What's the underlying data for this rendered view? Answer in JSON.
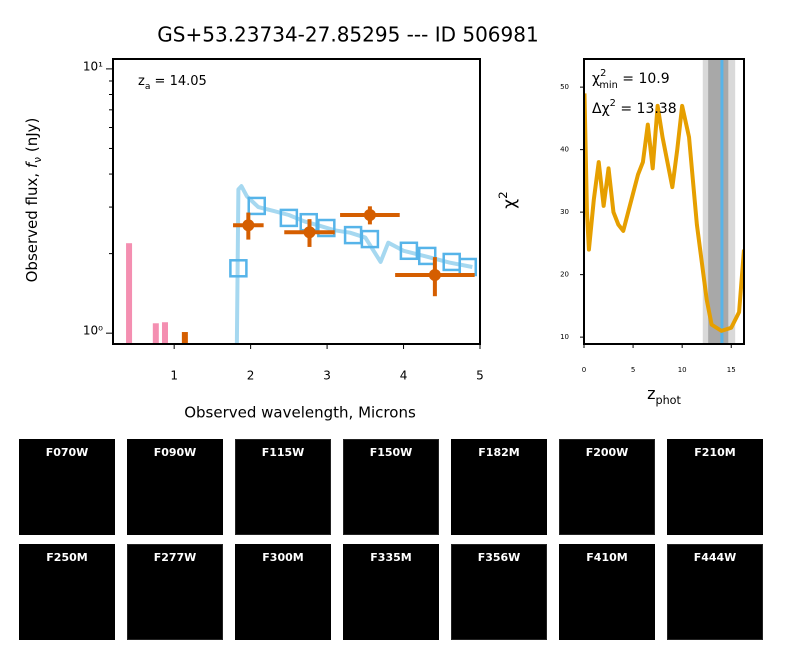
{
  "title": "GS+53.23734-27.85295 --- ID 506981",
  "chart_data": [
    {
      "type": "sed",
      "xlabel": "Observed wavelength, Microns",
      "ylabel": [
        "Observed flux, ",
        "f",
        "ν",
        " (nJy)"
      ],
      "annotation": [
        "z",
        "a",
        " = 14.05"
      ],
      "xlim": [
        0.2,
        5
      ],
      "xticks": [
        1,
        2,
        3,
        4,
        5
      ],
      "yscale": "log",
      "ylim": [
        0.91,
        10.9
      ],
      "yticks": [
        {
          "value": 1,
          "label": "10⁰"
        },
        {
          "value": 10,
          "label": "10¹"
        }
      ],
      "yminorticks": [
        2,
        3,
        4,
        5,
        6,
        7,
        8,
        9
      ],
      "model": {
        "color": "#a6d8f0",
        "x": [
          1.82,
          1.84,
          1.88,
          1.95,
          2.1,
          2.3,
          2.5,
          2.7,
          2.9,
          3.1,
          3.3,
          3.5,
          3.7,
          3.8,
          4.0,
          4.3,
          4.6,
          4.9
        ],
        "values": [
          0.91,
          3.5,
          3.6,
          3.3,
          3.0,
          2.9,
          2.8,
          2.65,
          2.55,
          2.45,
          2.4,
          2.3,
          1.86,
          2.2,
          2.05,
          1.95,
          1.85,
          1.78
        ]
      },
      "model_photometry": {
        "color": "#56b4e9",
        "x": [
          1.84,
          2.08,
          2.5,
          2.76,
          2.99,
          3.34,
          3.56,
          4.07,
          4.31,
          4.63,
          4.84
        ],
        "values": [
          1.76,
          3.03,
          2.73,
          2.63,
          2.5,
          2.35,
          2.27,
          2.05,
          1.96,
          1.86,
          1.78
        ]
      },
      "photometry": {
        "color": "#d55e00",
        "x": [
          1.97,
          2.77,
          3.56,
          4.41
        ],
        "xerr": [
          0.2,
          0.33,
          0.39,
          0.52
        ],
        "values": [
          2.56,
          2.41,
          2.8,
          1.66
        ],
        "yerr": [
          0.3,
          0.29,
          0.22,
          0.28
        ]
      },
      "upper_limits": {
        "x": [
          0.41,
          0.76,
          0.88,
          1.14
        ],
        "values": [
          2.19,
          1.09,
          1.1,
          1.01
        ],
        "colors": [
          "#f48fb1",
          "#f48fb1",
          "#f48fb1",
          "#d55e00"
        ]
      }
    },
    {
      "type": "line",
      "xlabel": [
        "z",
        "phot"
      ],
      "ylabel": [
        "χ",
        "2"
      ],
      "annotations": [
        [
          "χ",
          "2",
          "min",
          " = 10.9"
        ],
        [
          "Δχ",
          "2",
          "",
          " = 13.38"
        ]
      ],
      "xlim": [
        0,
        16.3
      ],
      "xticks": [
        0,
        5,
        10,
        15
      ],
      "ylim": [
        8.9,
        54.5
      ],
      "yticks": [
        10,
        20,
        30,
        40,
        50
      ],
      "bands": [
        {
          "from": 12.1,
          "to": 15.4,
          "color": "#d9d9d9"
        },
        {
          "from": 12.65,
          "to": 14.7,
          "color": "#a8a8a8"
        }
      ],
      "marker_z": 14.05,
      "marker_color": "#56b4e9",
      "color": "#e69f00",
      "x": [
        0.05,
        0.3,
        0.5,
        1.0,
        1.5,
        2.0,
        2.5,
        3.0,
        3.5,
        4.0,
        4.5,
        5.0,
        5.5,
        6.0,
        6.5,
        7.0,
        7.5,
        8.0,
        8.5,
        9.0,
        9.5,
        10.0,
        10.7,
        11.5,
        12.5,
        13.0,
        14.0,
        15.0,
        15.8,
        16.3
      ],
      "values": [
        49,
        30,
        24,
        32,
        38,
        31,
        37,
        30,
        28,
        27,
        30,
        33,
        36,
        38,
        44,
        37,
        47,
        42,
        38,
        34,
        40,
        47,
        42,
        28,
        16,
        12,
        11,
        11.5,
        14,
        24
      ]
    }
  ],
  "cutouts": [
    {
      "name": "F070W",
      "image": false
    },
    {
      "name": "F090W",
      "image": false
    },
    {
      "name": "F115W",
      "image": true
    },
    {
      "name": "F150W",
      "image": true
    },
    {
      "name": "F182M",
      "image": false
    },
    {
      "name": "F200W",
      "image": true
    },
    {
      "name": "F210M",
      "image": false
    },
    {
      "name": "F250M",
      "image": false
    },
    {
      "name": "F277W",
      "image": true
    },
    {
      "name": "F300M",
      "image": false
    },
    {
      "name": "F335M",
      "image": false
    },
    {
      "name": "F356W",
      "image": true
    },
    {
      "name": "F410M",
      "image": false
    },
    {
      "name": "F444W",
      "image": true
    }
  ]
}
